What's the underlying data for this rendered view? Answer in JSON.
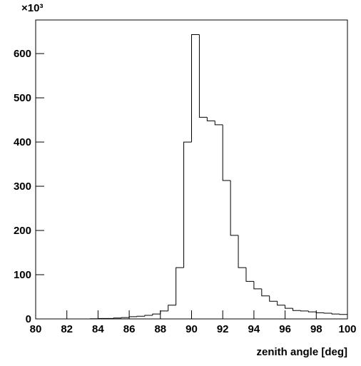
{
  "chart_data": {
    "type": "histogram",
    "xlabel": "zenith angle [deg]",
    "y_multiplier": "×10³",
    "bins": [
      80,
      80.5,
      81,
      81.5,
      82,
      82.5,
      83,
      83.5,
      84,
      84.5,
      85,
      85.5,
      86,
      86.5,
      87,
      87.5,
      88,
      88.5,
      89,
      89.5,
      90,
      90.5,
      91,
      91.5,
      92,
      92.5,
      93,
      93.5,
      94,
      94.5,
      95,
      95.5,
      96,
      96.5,
      97,
      97.5,
      98,
      98.5,
      99,
      99.5,
      100
    ],
    "counts": [
      0,
      0,
      0,
      0,
      0,
      0,
      0,
      0.5,
      1,
      1,
      2,
      3,
      5,
      6,
      8,
      11,
      18,
      31,
      116,
      400,
      643,
      456,
      448,
      439,
      313,
      189,
      116,
      85,
      68,
      52,
      40,
      31,
      24,
      19,
      18,
      16,
      14,
      13,
      11,
      10
    ],
    "color": "#000000",
    "xlim": [
      80,
      100
    ],
    "xticks": [
      80,
      82,
      84,
      86,
      88,
      90,
      92,
      94,
      96,
      98,
      100
    ],
    "ylim": [
      0,
      676
    ],
    "yticks": [
      0,
      100,
      200,
      300,
      400,
      500,
      600
    ]
  }
}
